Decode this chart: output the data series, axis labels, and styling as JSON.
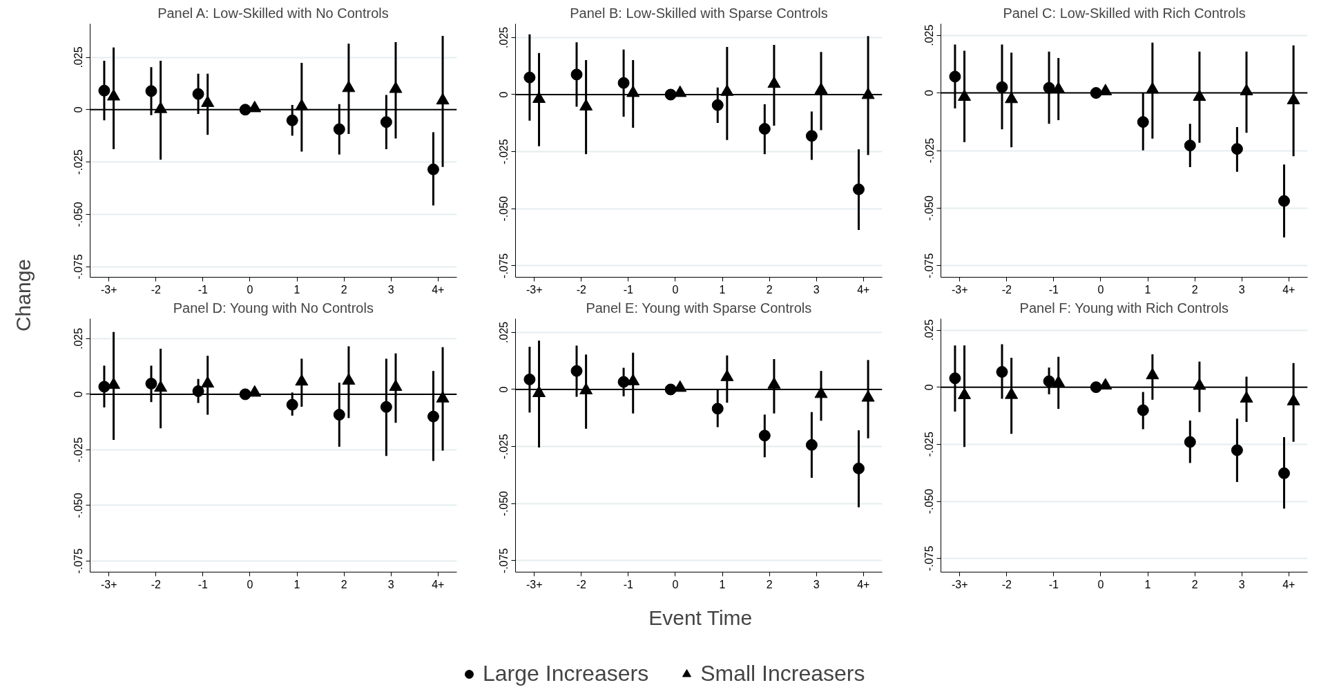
{
  "chart_data": [
    {
      "type": "scatter",
      "title": "Panel A: Low-Skilled with No Controls",
      "ylabel": "Change",
      "legend": "bottom",
      "grid": "y",
      "categories": [
        "-3+",
        "-2",
        "-1",
        "0",
        "1",
        "2",
        "3",
        "4+"
      ],
      "ylim": [
        -0.08,
        0.041
      ],
      "yticks": [
        {
          "value": -0.075,
          "label": "-.075"
        },
        {
          "value": -0.05,
          "label": "-.050"
        },
        {
          "value": -0.025,
          "label": "-.025"
        },
        {
          "value": 0,
          "label": "0"
        },
        {
          "value": 0.025,
          "label": ".025"
        }
      ],
      "ref_lines": [
        {
          "axis": "y",
          "value": 0,
          "label": null
        }
      ],
      "series": [
        {
          "name": "Large Increasers",
          "color": "#000000",
          "marker": "circle",
          "values": [
            0.0091,
            0.0089,
            0.0075,
            0,
            -0.0051,
            -0.0093,
            -0.0059,
            -0.0285
          ],
          "errors": [
            [
              -0.0051,
              0.0234
            ],
            [
              -0.0026,
              0.0203
            ],
            [
              -0.002,
              0.0172
            ],
            null,
            [
              -0.0124,
              0.0023
            ],
            [
              -0.0214,
              0.0027
            ],
            [
              -0.0188,
              0.007
            ],
            [
              -0.0457,
              -0.0108
            ]
          ]
        },
        {
          "name": "Small Increasers",
          "color": "#000000",
          "marker": "triangle",
          "values": [
            0.0063,
            0.0003,
            0.0032,
            0.0007,
            0.0016,
            0.0103,
            0.0099,
            0.0044
          ],
          "errors": [
            [
              -0.0188,
              0.0297
            ],
            [
              -0.0239,
              0.0234
            ],
            [
              -0.012,
              0.0172
            ],
            null,
            [
              -0.02,
              0.0224
            ],
            [
              -0.0116,
              0.0315
            ],
            [
              -0.0137,
              0.0323
            ],
            [
              -0.0273,
              0.0352
            ]
          ]
        }
      ]
    },
    {
      "type": "scatter",
      "title": "Panel B: Low-Skilled with Sparse Controls",
      "grid": "y",
      "categories": [
        "-3+",
        "-2",
        "-1",
        "0",
        "1",
        "2",
        "3",
        "4+"
      ],
      "ylim": [
        -0.08,
        0.031
      ],
      "yticks": [
        {
          "value": -0.075,
          "label": "-.075"
        },
        {
          "value": -0.05,
          "label": "-.050"
        },
        {
          "value": -0.025,
          "label": "-.025"
        },
        {
          "value": 0,
          "label": "0"
        },
        {
          "value": 0.025,
          "label": ".025"
        }
      ],
      "ref_lines": [
        {
          "axis": "y",
          "value": 0,
          "label": null
        }
      ],
      "series": [
        {
          "color": "#000000",
          "marker": "circle",
          "values": [
            0.0075,
            0.0088,
            0.0051,
            0,
            -0.0046,
            -0.015,
            -0.0181,
            -0.0415
          ],
          "errors": [
            [
              -0.0114,
              0.0264
            ],
            [
              -0.0053,
              0.0229
            ],
            [
              -0.0097,
              0.0197
            ],
            null,
            [
              -0.0124,
              0.0031
            ],
            [
              -0.0261,
              -0.0042
            ],
            [
              -0.0286,
              -0.0074
            ],
            [
              -0.0593,
              -0.024
            ]
          ]
        },
        {
          "color": "#000000",
          "marker": "triangle",
          "values": [
            -0.0019,
            -0.0052,
            0.0007,
            0.0007,
            0.0012,
            0.0047,
            0.002,
            -0.0002
          ],
          "errors": [
            [
              -0.0226,
              0.0182
            ],
            [
              -0.0261,
              0.0151
            ],
            [
              -0.0145,
              0.0151
            ],
            null,
            [
              -0.0199,
              0.0209
            ],
            [
              -0.0136,
              0.0218
            ],
            [
              -0.0156,
              0.0187
            ],
            [
              -0.0265,
              0.0256
            ]
          ]
        }
      ]
    },
    {
      "type": "scatter",
      "title": "Panel C: Low-Skilled with Rich Controls",
      "grid": "y",
      "categories": [
        "-3+",
        "-2",
        "-1",
        "0",
        "1",
        "2",
        "3",
        "4+"
      ],
      "ylim": [
        -0.08,
        0.03
      ],
      "yticks": [
        {
          "value": -0.075,
          "label": "-.075"
        },
        {
          "value": -0.05,
          "label": "-.050"
        },
        {
          "value": -0.025,
          "label": "-.025"
        },
        {
          "value": 0,
          "label": "0"
        },
        {
          "value": 0.025,
          "label": ".025"
        }
      ],
      "ref_lines": [
        {
          "axis": "y",
          "value": 0,
          "label": null
        }
      ],
      "series": [
        {
          "color": "#000000",
          "marker": "circle",
          "values": [
            0.0071,
            0.0025,
            0.0022,
            0,
            -0.0126,
            -0.0228,
            -0.0243,
            -0.0469
          ],
          "errors": [
            [
              -0.0067,
              0.021
            ],
            [
              -0.0158,
              0.021
            ],
            [
              -0.0134,
              0.0179
            ],
            null,
            [
              -0.0249,
              0
            ],
            [
              -0.0322,
              -0.0134
            ],
            [
              -0.0342,
              -0.0148
            ],
            [
              -0.0627,
              -0.0311
            ]
          ]
        },
        {
          "color": "#000000",
          "marker": "triangle",
          "values": [
            -0.0017,
            -0.0027,
            0.0016,
            0.0007,
            0.0015,
            -0.0017,
            0.0007,
            -0.0032
          ],
          "errors": [
            [
              -0.0213,
              0.0183
            ],
            [
              -0.0236,
              0.0175
            ],
            [
              -0.0118,
              0.0152
            ],
            null,
            [
              -0.0198,
              0.0218
            ],
            [
              -0.0216,
              0.0179
            ],
            [
              -0.0173,
              0.0179
            ],
            [
              -0.0275,
              0.0206
            ]
          ]
        }
      ]
    },
    {
      "type": "scatter",
      "title": "Panel D: Young with No Controls",
      "grid": "y",
      "categories": [
        "-3+",
        "-2",
        "-1",
        "0",
        "1",
        "2",
        "3",
        "4+"
      ],
      "ylim": [
        -0.08,
        0.034
      ],
      "yticks": [
        {
          "value": -0.075,
          "label": "-.075"
        },
        {
          "value": -0.05,
          "label": "-.050"
        },
        {
          "value": -0.025,
          "label": "-.025"
        },
        {
          "value": 0,
          "label": "0"
        },
        {
          "value": 0.025,
          "label": ".025"
        }
      ],
      "ref_lines": [
        {
          "axis": "y",
          "value": 0,
          "label": null
        }
      ],
      "series": [
        {
          "color": "#000000",
          "marker": "circle",
          "values": [
            0.0034,
            0.0048,
            0.0014,
            0,
            -0.0047,
            -0.0092,
            -0.0057,
            -0.01
          ],
          "errors": [
            [
              -0.0059,
              0.0129
            ],
            [
              -0.0035,
              0.0129
            ],
            [
              -0.0039,
              0.0069
            ],
            null,
            [
              -0.0096,
              0.0008
            ],
            [
              -0.0236,
              0.0052
            ],
            [
              -0.0277,
              0.016
            ],
            [
              -0.03,
              0.0105
            ]
          ]
        },
        {
          "color": "#000000",
          "marker": "triangle",
          "values": [
            0.0042,
            0.0029,
            0.0048,
            0.0007,
            0.0057,
            0.0061,
            0.0033,
            -0.0019
          ],
          "errors": [
            [
              -0.0205,
              0.028
            ],
            [
              -0.0153,
              0.0205
            ],
            [
              -0.0092,
              0.0173
            ],
            null,
            [
              -0.0056,
              0.016
            ],
            [
              -0.0107,
              0.0216
            ],
            [
              -0.0128,
              0.0184
            ],
            [
              -0.0253,
              0.0212
            ]
          ]
        }
      ]
    },
    {
      "type": "scatter",
      "title": "Panel E: Young with Sparse Controls",
      "xlabel": "Event Time",
      "grid": "y",
      "categories": [
        "-3+",
        "-2",
        "-1",
        "0",
        "1",
        "2",
        "3",
        "4+"
      ],
      "ylim": [
        -0.08,
        0.031
      ],
      "yticks": [
        {
          "value": -0.075,
          "label": "-.075"
        },
        {
          "value": -0.05,
          "label": "-.050"
        },
        {
          "value": -0.025,
          "label": "-.025"
        },
        {
          "value": 0,
          "label": "0"
        },
        {
          "value": 0.025,
          "label": ".025"
        }
      ],
      "ref_lines": [
        {
          "axis": "y",
          "value": 0,
          "label": null
        }
      ],
      "series": [
        {
          "color": "#000000",
          "marker": "circle",
          "values": [
            0.0044,
            0.0081,
            0.0033,
            0,
            -0.0084,
            -0.0202,
            -0.0243,
            -0.0346
          ],
          "errors": [
            [
              -0.0101,
              0.0187
            ],
            [
              -0.0032,
              0.0192
            ],
            [
              -0.003,
              0.0095
            ],
            null,
            [
              -0.0165,
              0
            ],
            [
              -0.0297,
              -0.011
            ],
            [
              -0.0387,
              -0.0099
            ],
            [
              -0.0516,
              -0.0179
            ]
          ]
        },
        {
          "color": "#000000",
          "marker": "triangle",
          "values": [
            -0.0016,
            -0.0004,
            0.0036,
            0.0007,
            0.0054,
            0.0021,
            -0.002,
            -0.0036
          ],
          "errors": [
            [
              -0.0254,
              0.0214
            ],
            [
              -0.0172,
              0.0153
            ],
            [
              -0.0105,
              0.0161
            ],
            null,
            [
              -0.0058,
              0.0149
            ],
            [
              -0.0105,
              0.0133
            ],
            [
              -0.0137,
              0.0081
            ],
            [
              -0.0214,
              0.0129
            ]
          ]
        }
      ]
    },
    {
      "type": "scatter",
      "title": "Panel F: Young with Rich Controls",
      "grid": "y",
      "categories": [
        "-3+",
        "-2",
        "-1",
        "0",
        "1",
        "2",
        "3",
        "4+"
      ],
      "ylim": [
        -0.081,
        0.03
      ],
      "yticks": [
        {
          "value": -0.075,
          "label": "-.075"
        },
        {
          "value": -0.05,
          "label": "-.050"
        },
        {
          "value": -0.025,
          "label": "-.025"
        },
        {
          "value": 0,
          "label": "0"
        },
        {
          "value": 0.025,
          "label": ".025"
        }
      ],
      "ref_lines": [
        {
          "axis": "y",
          "value": 0,
          "label": null
        }
      ],
      "series": [
        {
          "color": "#000000",
          "marker": "circle",
          "values": [
            0.0039,
            0.0067,
            0.0026,
            0,
            -0.0101,
            -0.024,
            -0.0276,
            -0.0377
          ],
          "errors": [
            [
              -0.0107,
              0.0183
            ],
            [
              -0.0051,
              0.0188
            ],
            [
              -0.0031,
              0.0086
            ],
            null,
            [
              -0.0184,
              -0.0021
            ],
            [
              -0.0332,
              -0.0146
            ],
            [
              -0.0415,
              -0.0138
            ],
            [
              -0.0532,
              -0.0219
            ]
          ]
        },
        {
          "color": "#000000",
          "marker": "triangle",
          "values": [
            -0.0035,
            -0.0034,
            0.0019,
            0.0007,
            0.0052,
            0.0006,
            -0.005,
            -0.0062
          ],
          "errors": [
            [
              -0.0262,
              0.0183
            ],
            [
              -0.0204,
              0.0128
            ],
            [
              -0.0095,
              0.0133
            ],
            null,
            [
              -0.0055,
              0.0144
            ],
            [
              -0.0109,
              0.0112
            ],
            [
              -0.0152,
              0.0046
            ],
            [
              -0.0239,
              0.0106
            ]
          ]
        }
      ]
    }
  ]
}
